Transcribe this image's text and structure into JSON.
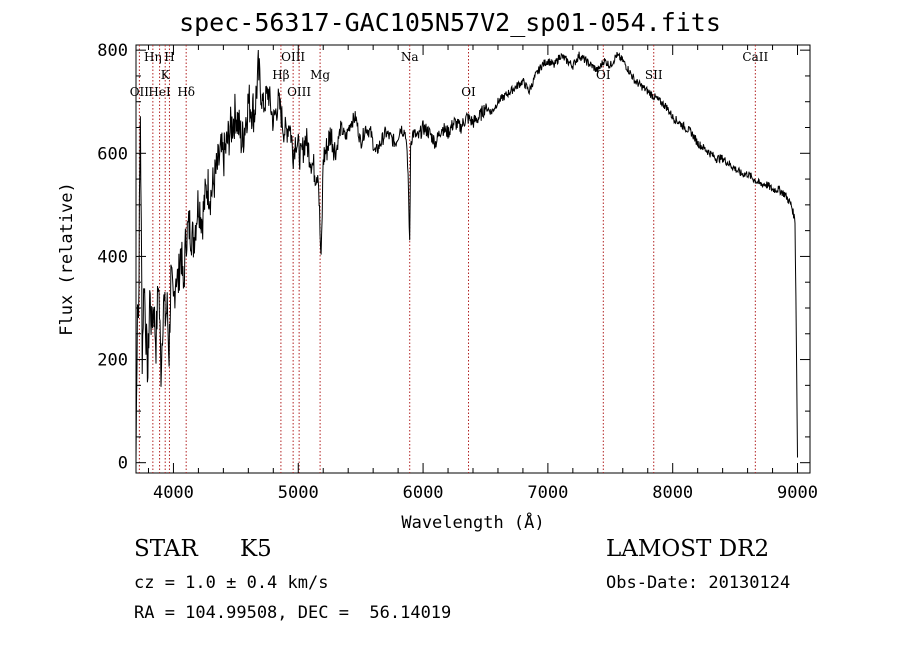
{
  "chart_data": {
    "type": "line",
    "title": "spec-56317-GAC105N57V2_sp01-054.fits",
    "xlabel": "Wavelength (Å)",
    "ylabel": "Flux (relative)",
    "xlim": [
      3700,
      9100
    ],
    "ylim": [
      -20,
      810
    ],
    "xticks": [
      4000,
      5000,
      6000,
      7000,
      8000,
      9000
    ],
    "yticks": [
      0,
      200,
      400,
      600,
      800
    ],
    "x_minor_step": 200,
    "y_minor_step": 50,
    "grid": false,
    "line_color": "#000000",
    "marker_color": "#b22222",
    "series": [
      {
        "x": [
          3700,
          3712,
          3720,
          3735,
          3750,
          3765,
          3780,
          3795,
          3810,
          3825,
          3840,
          3860,
          3880,
          3900,
          3920,
          3935,
          3950,
          3965,
          3980,
          4000,
          4020,
          4040,
          4060,
          4080,
          4100,
          4130,
          4160,
          4200,
          4230,
          4270,
          4300,
          4340,
          4380,
          4400,
          4450,
          4500,
          4550,
          4600,
          4650,
          4680,
          4700,
          4720,
          4760,
          4800,
          4840,
          4860,
          4880,
          4900,
          4930,
          4960,
          4980,
          5000,
          5020,
          5060,
          5100,
          5140,
          5160,
          5170,
          5183,
          5200,
          5230,
          5260,
          5300,
          5340,
          5380,
          5420,
          5460,
          5500,
          5540,
          5580,
          5620,
          5660,
          5700,
          5740,
          5780,
          5820,
          5860,
          5880,
          5893,
          5900,
          5920,
          5960,
          6000,
          6050,
          6100,
          6150,
          6200,
          6250,
          6300,
          6350,
          6400,
          6450,
          6500,
          6550,
          6600,
          6650,
          6700,
          6750,
          6800,
          6850,
          6900,
          6950,
          7000,
          7050,
          7100,
          7150,
          7200,
          7250,
          7300,
          7350,
          7400,
          7450,
          7500,
          7550,
          7600,
          7650,
          7700,
          7750,
          7800,
          7850,
          7900,
          7950,
          8000,
          8050,
          8100,
          8150,
          8200,
          8250,
          8300,
          8350,
          8400,
          8450,
          8500,
          8550,
          8600,
          8650,
          8700,
          8750,
          8800,
          8850,
          8900,
          8950,
          8980,
          8990,
          9000
        ],
        "y": [
          5,
          330,
          280,
          680,
          210,
          360,
          250,
          170,
          330,
          260,
          310,
          230,
          360,
          180,
          320,
          280,
          300,
          210,
          360,
          300,
          370,
          350,
          420,
          330,
          440,
          460,
          430,
          510,
          470,
          540,
          520,
          560,
          600,
          590,
          640,
          680,
          620,
          700,
          680,
          760,
          720,
          690,
          720,
          660,
          700,
          680,
          650,
          640,
          660,
          600,
          630,
          610,
          590,
          630,
          590,
          560,
          570,
          480,
          380,
          590,
          610,
          640,
          600,
          650,
          630,
          660,
          670,
          620,
          650,
          640,
          600,
          620,
          640,
          630,
          620,
          650,
          640,
          560,
          420,
          620,
          640,
          630,
          650,
          640,
          620,
          650,
          640,
          660,
          650,
          670,
          660,
          670,
          690,
          680,
          700,
          710,
          720,
          730,
          740,
          720,
          750,
          770,
          780,
          770,
          790,
          780,
          770,
          790,
          780,
          770,
          760,
          780,
          770,
          790,
          780,
          760,
          740,
          730,
          720,
          710,
          700,
          690,
          670,
          660,
          650,
          640,
          620,
          610,
          600,
          590,
          590,
          580,
          570,
          560,
          560,
          550,
          540,
          540,
          530,
          530,
          520,
          500,
          470,
          250,
          10
        ]
      }
    ],
    "lines": [
      {
        "name": "OII",
        "x": 3727,
        "tier": 3
      },
      {
        "name": "Hη",
        "x": 3835,
        "tier": 1
      },
      {
        "name": "HeI",
        "x": 3889,
        "tier": 3
      },
      {
        "name": "K",
        "x": 3934,
        "tier": 2
      },
      {
        "name": "H",
        "x": 3968,
        "tier": 1
      },
      {
        "name": "Hδ",
        "x": 4102,
        "tier": 3
      },
      {
        "name": "Hβ",
        "x": 4861,
        "tier": 2
      },
      {
        "name": "OIII",
        "x": 4959,
        "tier": 1
      },
      {
        "name": "OIII",
        "x": 5007,
        "tier": 3
      },
      {
        "name": "Mg",
        "x": 5175,
        "tier": 2
      },
      {
        "name": "Na",
        "x": 5893,
        "tier": 1
      },
      {
        "name": "OI",
        "x": 6364,
        "tier": 3
      },
      {
        "name": "OI",
        "x": 7444,
        "tier": 2
      },
      {
        "name": "SII",
        "x": 7848,
        "tier": 2
      },
      {
        "name": "CaII",
        "x": 8662,
        "tier": 1
      }
    ]
  },
  "info": {
    "class": "STAR",
    "subclass": "K5",
    "cz": "cz = 1.0 ± 0.4 km/s",
    "coords": "RA = 104.99508, DEC =  56.14019",
    "survey": "LAMOST DR2",
    "obs_date": "Obs-Date: 20130124"
  }
}
